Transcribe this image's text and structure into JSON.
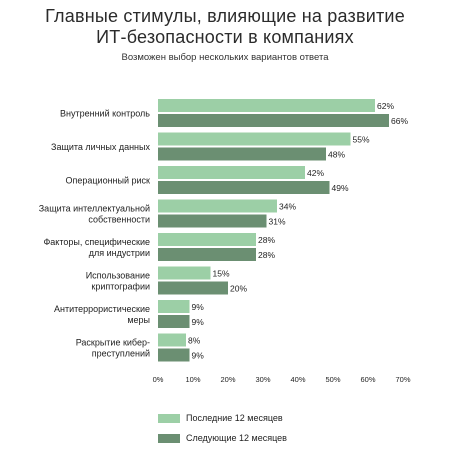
{
  "chart_data": {
    "type": "bar",
    "orientation": "horizontal",
    "title_lines": [
      "Главные стимулы, влияющие на развитие",
      "ИТ-безопасности в компаниях"
    ],
    "subtitle": "Возможен выбор нескольких вариантов ответа",
    "categories": [
      [
        "Внутренний контроль"
      ],
      [
        "Защита личных данных"
      ],
      [
        "Операционный риск"
      ],
      [
        "Защита интеллектуальной",
        "собственности"
      ],
      [
        "Факторы, специфические",
        "для индустрии"
      ],
      [
        "Использование",
        "криптографии"
      ],
      [
        "Антитеррористические",
        "меры"
      ],
      [
        "Раскрытие кибер-",
        "преступлений"
      ]
    ],
    "series": [
      {
        "name": "Последние 12 месяцев",
        "color": "#9ccfa6",
        "values": [
          62,
          55,
          42,
          34,
          28,
          15,
          9,
          8
        ]
      },
      {
        "name": "Следующие 12 месяцев",
        "color": "#6b8f72",
        "values": [
          66,
          48,
          49,
          31,
          28,
          20,
          9,
          9
        ]
      }
    ],
    "value_suffix": "%",
    "xlim": [
      0,
      70
    ],
    "xticks": [
      "0%",
      "10%",
      "20%",
      "30%",
      "40%",
      "50%",
      "60%",
      "70%"
    ],
    "grid": false,
    "legend_position": "bottom"
  }
}
